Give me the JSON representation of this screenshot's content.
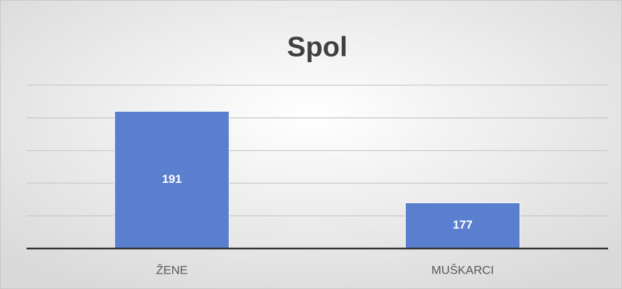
{
  "chart_data": {
    "type": "bar",
    "title": "Spol",
    "categories": [
      "ŽENE",
      "MUŠKARCI"
    ],
    "values": [
      191,
      177
    ],
    "color": "#5b7fcf",
    "ylim": [
      170,
      195
    ],
    "yticks": [
      170,
      175,
      180,
      185,
      190,
      195
    ],
    "grid": true
  }
}
